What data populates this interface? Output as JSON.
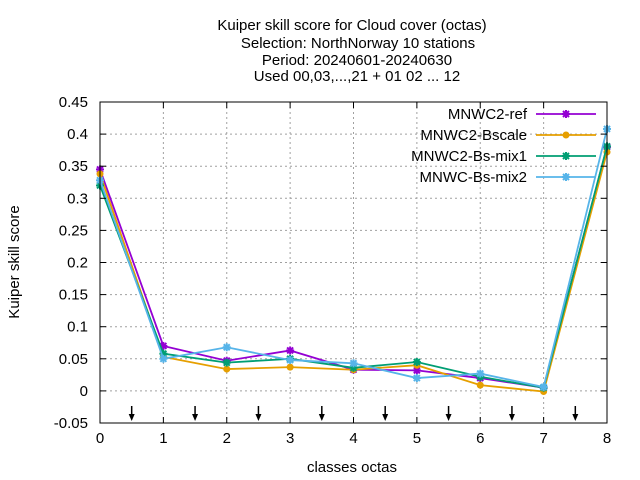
{
  "chart_data": {
    "type": "line",
    "title_lines": [
      "Kuiper skill score  for Cloud cover (octas)",
      "Selection: NorthNorway      10 stations",
      "Period: 20240601-20240630",
      "Used 00,03,...,21 + 01 02 ... 12"
    ],
    "xlabel": "classes octas",
    "ylabel": "Kuiper skill score",
    "xlim": [
      0,
      8
    ],
    "ylim": [
      -0.05,
      0.45
    ],
    "x_ticks": [
      0,
      1,
      2,
      3,
      4,
      5,
      6,
      7,
      8
    ],
    "y_ticks": [
      -0.05,
      0,
      0.05,
      0.1,
      0.15,
      0.2,
      0.25,
      0.3,
      0.35,
      0.4,
      0.45
    ],
    "y_tick_labels": [
      "-0.05",
      "0",
      "0.05",
      "0.1",
      "0.15",
      "0.2",
      "0.25",
      "0.3",
      "0.35",
      "0.4",
      "0.45"
    ],
    "grid": true,
    "legend_position": "top-right",
    "arrow_marks_x": [
      0.5,
      1.5,
      2.5,
      3.5,
      4.5,
      5.5,
      6.5,
      7.5
    ],
    "x": [
      0,
      1,
      2,
      3,
      4,
      5,
      6,
      7,
      8
    ],
    "series": [
      {
        "name": "MNWC2-ref",
        "color": "#9400d3",
        "marker": "plus-x",
        "values": [
          0.345,
          0.07,
          0.047,
          0.063,
          0.033,
          0.032,
          0.02,
          0.005,
          0.38
        ]
      },
      {
        "name": "MNWC2-Bscale",
        "color": "#e69f00",
        "marker": "circle",
        "values": [
          0.338,
          0.053,
          0.034,
          0.037,
          0.033,
          0.04,
          0.009,
          -0.001,
          0.372
        ]
      },
      {
        "name": "MNWC2-Bs-mix1",
        "color": "#009e73",
        "marker": "plus-x",
        "values": [
          0.32,
          0.058,
          0.044,
          0.05,
          0.036,
          0.045,
          0.022,
          0.005,
          0.381
        ]
      },
      {
        "name": "MNWC-Bs-mix2",
        "color": "#56b4e9",
        "marker": "plus-x",
        "values": [
          0.328,
          0.05,
          0.068,
          0.048,
          0.043,
          0.02,
          0.027,
          0.006,
          0.408
        ]
      }
    ]
  }
}
